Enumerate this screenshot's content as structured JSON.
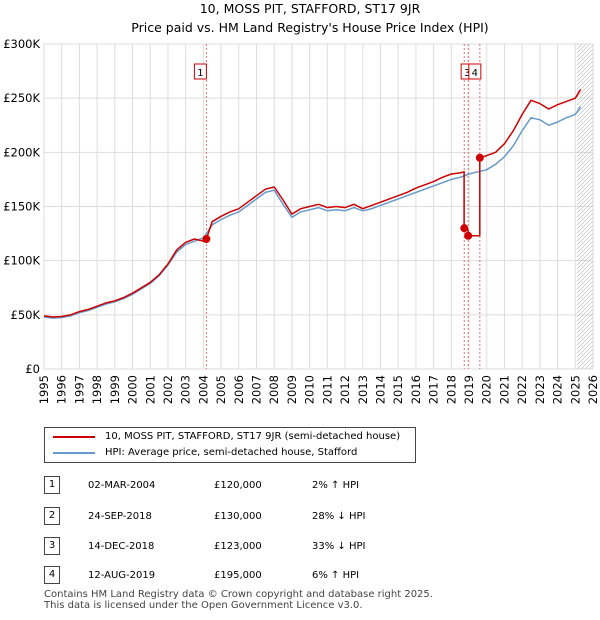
{
  "chart_data": {
    "type": "line",
    "title": "10, MOSS PIT, STAFFORD, ST17 9JR",
    "subtitle": "Price paid vs. HM Land Registry's House Price Index (HPI)",
    "ylim": [
      0,
      300000
    ],
    "xlim": [
      1995,
      2026
    ],
    "y_ticks": [
      {
        "value": 0,
        "label": "£0"
      },
      {
        "value": 50000,
        "label": "£50K"
      },
      {
        "value": 100000,
        "label": "£100K"
      },
      {
        "value": 150000,
        "label": "£150K"
      },
      {
        "value": 200000,
        "label": "£200K"
      },
      {
        "value": 250000,
        "label": "£250K"
      },
      {
        "value": 300000,
        "label": "£300K"
      }
    ],
    "x_ticks": [
      "1995",
      "1996",
      "1997",
      "1998",
      "1999",
      "2000",
      "2001",
      "2002",
      "2003",
      "2004",
      "2005",
      "2006",
      "2007",
      "2008",
      "2009",
      "2010",
      "2011",
      "2012",
      "2013",
      "2014",
      "2015",
      "2016",
      "2017",
      "2018",
      "2019",
      "2020",
      "2021",
      "2022",
      "2023",
      "2024",
      "2025",
      "2026"
    ],
    "grid": true,
    "forecast_start": 2025.1,
    "series": [
      {
        "name": "10, MOSS PIT, STAFFORD, ST17 9JR (semi-detached house)",
        "color": "#cc0000",
        "x": [
          1995.0,
          1995.5,
          1996.0,
          1996.5,
          1997.0,
          1997.5,
          1998.0,
          1998.5,
          1999.0,
          1999.5,
          2000.0,
          2000.5,
          2001.0,
          2001.5,
          2002.0,
          2002.5,
          2003.0,
          2003.5,
          2004.0,
          2004.17,
          2004.5,
          2005.0,
          2005.5,
          2006.0,
          2006.5,
          2007.0,
          2007.5,
          2008.0,
          2008.5,
          2009.0,
          2009.5,
          2010.0,
          2010.5,
          2011.0,
          2011.5,
          2012.0,
          2012.5,
          2013.0,
          2013.5,
          2014.0,
          2014.5,
          2015.0,
          2015.5,
          2016.0,
          2016.5,
          2017.0,
          2017.5,
          2018.0,
          2018.5,
          2018.72,
          2018.72,
          2018.8,
          2018.95,
          2018.95,
          2019.0,
          2019.3,
          2019.6,
          2019.61,
          2019.61,
          2020.0,
          2020.5,
          2021.0,
          2021.5,
          2022.0,
          2022.5,
          2023.0,
          2023.5,
          2024.0,
          2024.5,
          2025.0,
          2025.3
        ],
        "values": [
          49000,
          48000,
          48500,
          50000,
          53000,
          55000,
          58000,
          61000,
          63000,
          66000,
          70000,
          75000,
          80000,
          87000,
          97000,
          110000,
          117000,
          120000,
          118000,
          120000,
          136000,
          141000,
          145000,
          148000,
          154000,
          160000,
          166000,
          168000,
          156000,
          143000,
          148000,
          150000,
          152000,
          149000,
          150000,
          149000,
          152000,
          148000,
          151000,
          154000,
          157000,
          160000,
          163000,
          167000,
          170000,
          173000,
          177000,
          180000,
          181000,
          182000,
          131000,
          130000,
          128000,
          123000,
          123000,
          123000,
          123000,
          123000,
          195000,
          197000,
          200000,
          208000,
          220000,
          235000,
          248000,
          245000,
          240000,
          244000,
          247000,
          250000,
          258000
        ]
      },
      {
        "name": "HPI: Average price, semi-detached house, Stafford",
        "color": "#6699cc",
        "x": [
          1995.0,
          1995.5,
          1996.0,
          1996.5,
          1997.0,
          1997.5,
          1998.0,
          1998.5,
          1999.0,
          1999.5,
          2000.0,
          2000.5,
          2001.0,
          2001.5,
          2002.0,
          2002.5,
          2003.0,
          2003.5,
          2004.0,
          2004.5,
          2005.0,
          2005.5,
          2006.0,
          2006.5,
          2007.0,
          2007.5,
          2008.0,
          2008.5,
          2009.0,
          2009.5,
          2010.0,
          2010.5,
          2011.0,
          2011.5,
          2012.0,
          2012.5,
          2013.0,
          2013.5,
          2014.0,
          2014.5,
          2015.0,
          2015.5,
          2016.0,
          2016.5,
          2017.0,
          2017.5,
          2018.0,
          2018.5,
          2019.0,
          2019.5,
          2020.0,
          2020.5,
          2021.0,
          2021.5,
          2022.0,
          2022.5,
          2023.0,
          2023.5,
          2024.0,
          2024.5,
          2025.0,
          2025.3
        ],
        "values": [
          48000,
          47000,
          47500,
          49000,
          52000,
          54000,
          57000,
          60000,
          62000,
          65000,
          69000,
          74000,
          79000,
          86000,
          96000,
          108000,
          115000,
          118000,
          121000,
          133000,
          138000,
          142000,
          145000,
          151000,
          157000,
          163000,
          165000,
          152000,
          140000,
          145000,
          147000,
          149000,
          146000,
          147000,
          146000,
          149000,
          146000,
          148000,
          151000,
          154000,
          157000,
          160000,
          163000,
          166000,
          169000,
          172000,
          175000,
          177000,
          180000,
          182000,
          184000,
          189000,
          196000,
          206000,
          220000,
          232000,
          230000,
          225000,
          228000,
          232000,
          235000,
          242000
        ]
      }
    ],
    "sale_markers": [
      {
        "id": "1",
        "x": 2004.17,
        "value": 120000
      },
      {
        "id": "2",
        "x": 2018.73,
        "value": 130000
      },
      {
        "id": "3",
        "x": 2018.95,
        "value": 123000
      },
      {
        "id": "4",
        "x": 2019.61,
        "value": 195000
      }
    ]
  },
  "legend": [
    {
      "label": "10, MOSS PIT, STAFFORD, ST17 9JR (semi-detached house)",
      "color": "#cc0000"
    },
    {
      "label": "HPI: Average price, semi-detached house, Stafford",
      "color": "#6699cc"
    }
  ],
  "sales": [
    {
      "num": "1",
      "date": "02-MAR-2004",
      "price": "£120,000",
      "hpi": "2% ↑ HPI"
    },
    {
      "num": "2",
      "date": "24-SEP-2018",
      "price": "£130,000",
      "hpi": "28% ↓ HPI"
    },
    {
      "num": "3",
      "date": "14-DEC-2018",
      "price": "£123,000",
      "hpi": "33% ↓ HPI"
    },
    {
      "num": "4",
      "date": "12-AUG-2019",
      "price": "£195,000",
      "hpi": "6% ↑ HPI"
    }
  ],
  "footer": {
    "line1": "Contains HM Land Registry data © Crown copyright and database right 2025.",
    "line2": "This data is licensed under the Open Government Licence v3.0."
  }
}
